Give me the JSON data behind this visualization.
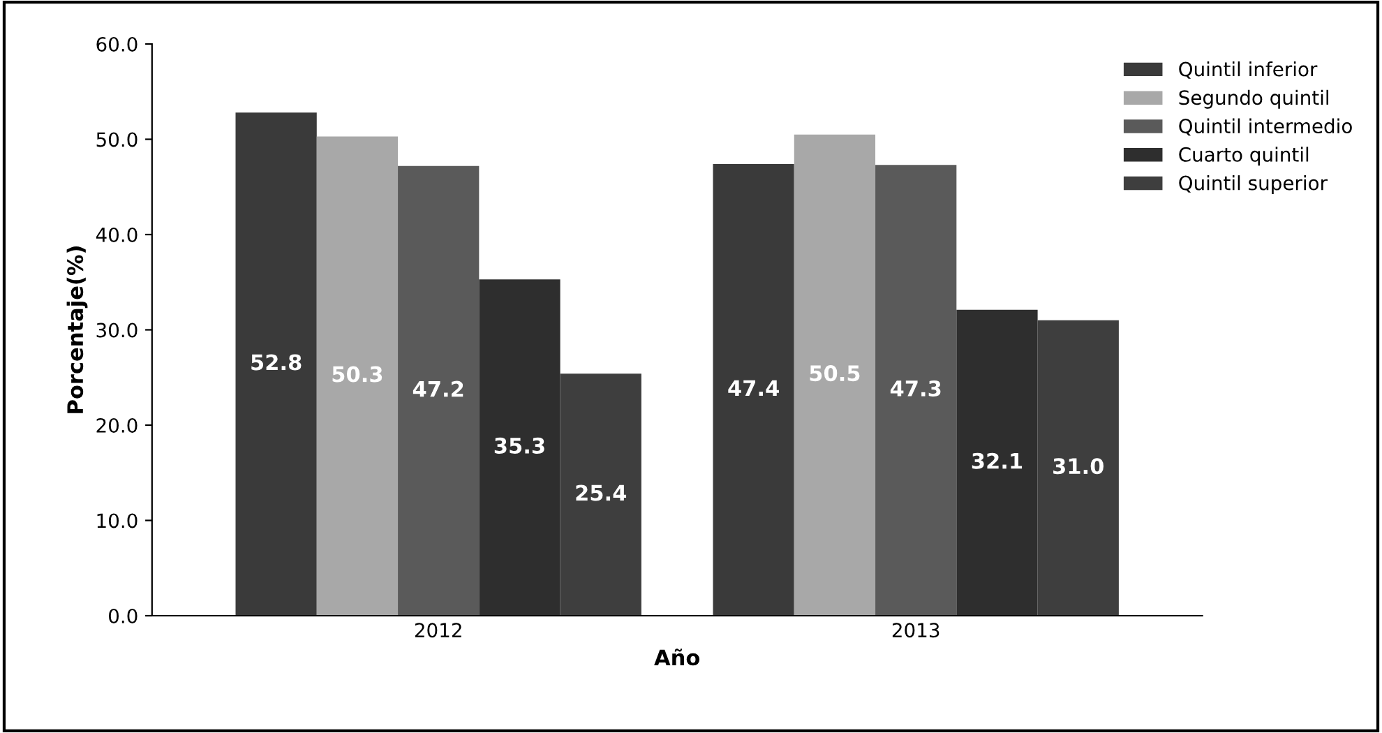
{
  "chart_data": {
    "type": "bar",
    "xlabel": "Año",
    "ylabel": "Porcentaje(%)",
    "categories": [
      "2012",
      "2013"
    ],
    "series": [
      {
        "name": "Quintil inferior",
        "color": "#3a3a3a",
        "values": [
          52.8,
          47.4
        ],
        "value_labels": [
          "52.8",
          "47.4"
        ]
      },
      {
        "name": "Segundo quintil",
        "color": "#a8a8a8",
        "values": [
          50.3,
          50.5
        ],
        "value_labels": [
          "50.3",
          "50.5"
        ]
      },
      {
        "name": "Quintil intermedio",
        "color": "#5a5a5a",
        "values": [
          47.2,
          47.3
        ],
        "value_labels": [
          "47.2",
          "47.3"
        ]
      },
      {
        "name": "Cuarto quintil",
        "color": "#2e2e2e",
        "values": [
          35.3,
          32.1
        ],
        "value_labels": [
          "35.3",
          "32.1"
        ]
      },
      {
        "name": "Quintil superior",
        "color": "#3e3e3e",
        "values": [
          25.4,
          31.0
        ],
        "value_labels": [
          "25.4",
          "31.0"
        ]
      }
    ],
    "ylim": [
      0,
      60
    ],
    "yticks": [
      {
        "value": 0,
        "label": "0.0"
      },
      {
        "value": 10,
        "label": "10.0"
      },
      {
        "value": 20,
        "label": "20.0"
      },
      {
        "value": 30,
        "label": "30.0"
      },
      {
        "value": 40,
        "label": "40.0"
      },
      {
        "value": 50,
        "label": "50.0"
      },
      {
        "value": 60,
        "label": "60.0"
      }
    ],
    "grid": false,
    "legend": "top right"
  }
}
